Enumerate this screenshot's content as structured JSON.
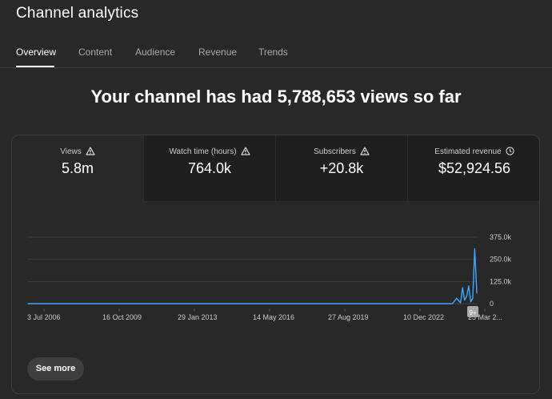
{
  "header": {
    "title": "Channel analytics"
  },
  "tabs": [
    {
      "label": "Overview"
    },
    {
      "label": "Content"
    },
    {
      "label": "Audience"
    },
    {
      "label": "Revenue"
    },
    {
      "label": "Trends"
    }
  ],
  "headline": "Your channel has had 5,788,653 views so far",
  "metrics": [
    {
      "label": "Views",
      "value": "5.8m",
      "icon": "warning-icon"
    },
    {
      "label": "Watch time (hours)",
      "value": "764.0k",
      "icon": "warning-icon"
    },
    {
      "label": "Subscribers",
      "value": "+20.8k",
      "icon": "warning-icon"
    },
    {
      "label": "Estimated revenue",
      "value": "$52,924.56",
      "icon": "clock-icon"
    }
  ],
  "chart_data": {
    "type": "line",
    "x_tick_labels": [
      "3 Jul 2006",
      "16 Oct 2009",
      "29 Jan 2013",
      "14 May 2016",
      "27 Aug 2019",
      "10 Dec 2022",
      "25 Mar 2..."
    ],
    "y_tick_labels": [
      "375.0k",
      "250.0k",
      "125.0k",
      "0"
    ],
    "ylim": [
      0,
      375000
    ],
    "series": [
      {
        "color": "#3ea6ff",
        "x": [
          "2006-07-03",
          "2024-01-01",
          "2024-03-01",
          "2024-05-01",
          "2024-06-01",
          "2024-07-01",
          "2024-08-01",
          "2024-09-01",
          "2024-10-01",
          "2024-11-01",
          "2024-12-01",
          "2025-01-01"
        ],
        "y": [
          0,
          0,
          30000,
          5000,
          90000,
          20000,
          40000,
          100000,
          10000,
          30000,
          310000,
          60000
        ]
      }
    ],
    "annotation_badge": "9+",
    "grid": true
  },
  "actions": {
    "see_more": "See more"
  }
}
